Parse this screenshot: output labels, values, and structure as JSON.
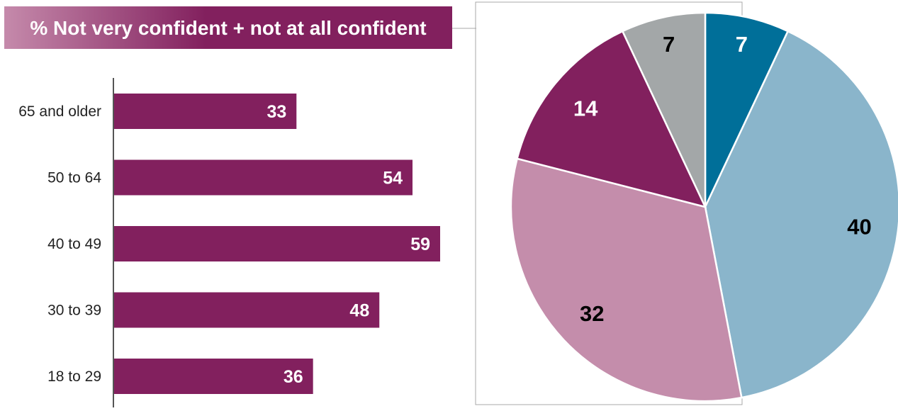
{
  "chart_data": [
    {
      "type": "bar",
      "orientation": "horizontal",
      "title": "% Not very confident + not at all confident",
      "categories": [
        "65 and older",
        "50 to 64",
        "40 to 49",
        "30 to 39",
        "18 to 29"
      ],
      "values": [
        33,
        54,
        59,
        48,
        36
      ],
      "xlim": [
        0,
        60
      ],
      "grid": false,
      "legend": "none",
      "colors": {
        "bar": "#82205e",
        "label": "#ffffff",
        "title_start": "#c58aab",
        "title_end": "#82205e"
      }
    },
    {
      "type": "pie",
      "values": [
        7,
        40,
        32,
        14,
        7
      ],
      "colors": [
        "#006f99",
        "#8ab5cb",
        "#c48dab",
        "#82205e",
        "#a3a7a8"
      ],
      "label_colors": [
        "#ffffff",
        "#000000",
        "#000000",
        "#ffffff",
        "#000000"
      ],
      "legend": "none"
    }
  ]
}
